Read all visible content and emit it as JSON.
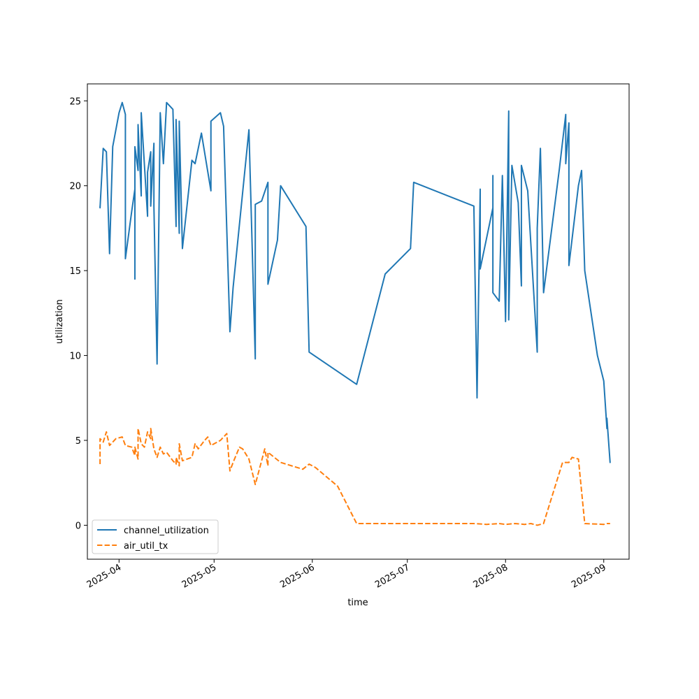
{
  "chart_data": {
    "type": "line",
    "title": "",
    "xlabel": "time",
    "ylabel": "utilization",
    "xlim": [
      "2025-03-22",
      "2025-09-09"
    ],
    "ylim": [
      -2,
      26
    ],
    "yticks": [
      0,
      5,
      10,
      15,
      20,
      25
    ],
    "xticks": [
      "2025-04-01",
      "2025-05-01",
      "2025-06-01",
      "2025-07-01",
      "2025-08-01",
      "2025-09-01"
    ],
    "xtick_labels": [
      "2025-04",
      "2025-05",
      "2025-06",
      "2025-07",
      "2025-08",
      "2025-09"
    ],
    "grid": false,
    "legend": "lower-left",
    "series": [
      {
        "name": "channel_utilization",
        "color": "#1f77b4",
        "dash": "solid",
        "points": [
          [
            "2025-03-26",
            18.8
          ],
          [
            "2025-03-26",
            18.7
          ],
          [
            "2025-03-27",
            22.2
          ],
          [
            "2025-03-28",
            22.0
          ],
          [
            "2025-03-29",
            16.0
          ],
          [
            "2025-03-30",
            22.3
          ],
          [
            "2025-04-01",
            24.3
          ],
          [
            "2025-04-02",
            24.9
          ],
          [
            "2025-04-03",
            24.2
          ],
          [
            "2025-04-03",
            15.7
          ],
          [
            "2025-04-05",
            18.5
          ],
          [
            "2025-04-06",
            19.8
          ],
          [
            "2025-04-06",
            14.5
          ],
          [
            "2025-04-06",
            22.3
          ],
          [
            "2025-04-07",
            20.9
          ],
          [
            "2025-04-07",
            23.6
          ],
          [
            "2025-04-08",
            19.4
          ],
          [
            "2025-04-08",
            24.3
          ],
          [
            "2025-04-10",
            18.2
          ],
          [
            "2025-04-10",
            20.8
          ],
          [
            "2025-04-11",
            22.0
          ],
          [
            "2025-04-11",
            18.8
          ],
          [
            "2025-04-12",
            22.5
          ],
          [
            "2025-04-12",
            18.8
          ],
          [
            "2025-04-13",
            9.5
          ],
          [
            "2025-04-14",
            24.3
          ],
          [
            "2025-04-15",
            21.3
          ],
          [
            "2025-04-16",
            24.9
          ],
          [
            "2025-04-18",
            24.5
          ],
          [
            "2025-04-19",
            17.6
          ],
          [
            "2025-04-19",
            23.9
          ],
          [
            "2025-04-20",
            17.2
          ],
          [
            "2025-04-20",
            23.8
          ],
          [
            "2025-04-21",
            16.3
          ],
          [
            "2025-04-24",
            21.5
          ],
          [
            "2025-04-25",
            21.3
          ],
          [
            "2025-04-27",
            23.1
          ],
          [
            "2025-04-30",
            19.7
          ],
          [
            "2025-04-30",
            23.8
          ],
          [
            "2025-05-03",
            24.3
          ],
          [
            "2025-05-04",
            23.5
          ],
          [
            "2025-05-06",
            11.4
          ],
          [
            "2025-05-07",
            14.0
          ],
          [
            "2025-05-12",
            23.3
          ],
          [
            "2025-05-14",
            9.8
          ],
          [
            "2025-05-14",
            18.9
          ],
          [
            "2025-05-16",
            19.1
          ],
          [
            "2025-05-18",
            20.2
          ],
          [
            "2025-05-18",
            14.2
          ],
          [
            "2025-05-21",
            16.8
          ],
          [
            "2025-05-22",
            20.0
          ],
          [
            "2025-05-30",
            17.6
          ],
          [
            "2025-05-31",
            10.2
          ],
          [
            "2025-06-15",
            8.3
          ],
          [
            "2025-06-24",
            14.8
          ],
          [
            "2025-07-02",
            16.3
          ],
          [
            "2025-07-03",
            20.2
          ],
          [
            "2025-07-22",
            18.8
          ],
          [
            "2025-07-23",
            7.5
          ],
          [
            "2025-07-24",
            19.8
          ],
          [
            "2025-07-24",
            15.1
          ],
          [
            "2025-07-28",
            18.7
          ],
          [
            "2025-07-28",
            20.6
          ],
          [
            "2025-07-28",
            13.7
          ],
          [
            "2025-07-30",
            13.2
          ],
          [
            "2025-07-31",
            20.6
          ],
          [
            "2025-08-01",
            12.0
          ],
          [
            "2025-08-02",
            24.4
          ],
          [
            "2025-08-02",
            12.1
          ],
          [
            "2025-08-03",
            21.2
          ],
          [
            "2025-08-05",
            19.0
          ],
          [
            "2025-08-06",
            14.1
          ],
          [
            "2025-08-06",
            21.2
          ],
          [
            "2025-08-08",
            19.7
          ],
          [
            "2025-08-11",
            10.2
          ],
          [
            "2025-08-11",
            17.5
          ],
          [
            "2025-08-12",
            22.2
          ],
          [
            "2025-08-13",
            13.7
          ],
          [
            "2025-08-18",
            21.0
          ],
          [
            "2025-08-20",
            24.2
          ],
          [
            "2025-08-20",
            21.3
          ],
          [
            "2025-08-21",
            23.7
          ],
          [
            "2025-08-21",
            15.3
          ],
          [
            "2025-08-24",
            20.0
          ],
          [
            "2025-08-25",
            20.9
          ],
          [
            "2025-08-26",
            15.0
          ],
          [
            "2025-08-30",
            10.0
          ],
          [
            "2025-09-01",
            8.5
          ],
          [
            "2025-09-02",
            5.7
          ],
          [
            "2025-09-02",
            6.3
          ],
          [
            "2025-09-03",
            3.7
          ]
        ]
      },
      {
        "name": "air_util_tx",
        "color": "#ff7f0e",
        "dash": "dashed",
        "points": [
          [
            "2025-03-26",
            3.6
          ],
          [
            "2025-03-26",
            5.1
          ],
          [
            "2025-03-27",
            4.9
          ],
          [
            "2025-03-28",
            5.5
          ],
          [
            "2025-03-29",
            4.7
          ],
          [
            "2025-03-31",
            5.1
          ],
          [
            "2025-04-02",
            5.2
          ],
          [
            "2025-04-03",
            4.7
          ],
          [
            "2025-04-05",
            4.6
          ],
          [
            "2025-04-06",
            4.1
          ],
          [
            "2025-04-06",
            4.6
          ],
          [
            "2025-04-07",
            3.9
          ],
          [
            "2025-04-07",
            5.7
          ],
          [
            "2025-04-08",
            4.8
          ],
          [
            "2025-04-09",
            4.6
          ],
          [
            "2025-04-10",
            5.5
          ],
          [
            "2025-04-11",
            5.1
          ],
          [
            "2025-04-11",
            5.7
          ],
          [
            "2025-04-12",
            4.5
          ],
          [
            "2025-04-13",
            4.0
          ],
          [
            "2025-04-14",
            4.6
          ],
          [
            "2025-04-15",
            4.2
          ],
          [
            "2025-04-16",
            4.3
          ],
          [
            "2025-04-18",
            3.8
          ],
          [
            "2025-04-19",
            3.6
          ],
          [
            "2025-04-19",
            4.0
          ],
          [
            "2025-04-20",
            3.5
          ],
          [
            "2025-04-20",
            4.8
          ],
          [
            "2025-04-21",
            3.8
          ],
          [
            "2025-04-24",
            4.0
          ],
          [
            "2025-04-25",
            4.8
          ],
          [
            "2025-04-26",
            4.5
          ],
          [
            "2025-04-28",
            5.0
          ],
          [
            "2025-04-29",
            5.2
          ],
          [
            "2025-04-30",
            4.7
          ],
          [
            "2025-05-03",
            5.0
          ],
          [
            "2025-05-05",
            5.4
          ],
          [
            "2025-05-06",
            3.2
          ],
          [
            "2025-05-07",
            3.7
          ],
          [
            "2025-05-09",
            4.6
          ],
          [
            "2025-05-10",
            4.5
          ],
          [
            "2025-05-12",
            3.9
          ],
          [
            "2025-05-14",
            2.4
          ],
          [
            "2025-05-16",
            3.8
          ],
          [
            "2025-05-17",
            4.5
          ],
          [
            "2025-05-18",
            3.5
          ],
          [
            "2025-05-18",
            4.3
          ],
          [
            "2025-05-20",
            4.0
          ],
          [
            "2025-05-22",
            3.7
          ],
          [
            "2025-05-29",
            3.3
          ],
          [
            "2025-05-31",
            3.6
          ],
          [
            "2025-06-02",
            3.4
          ],
          [
            "2025-06-09",
            2.3
          ],
          [
            "2025-06-15",
            0.1
          ],
          [
            "2025-07-02",
            0.1
          ],
          [
            "2025-07-22",
            0.1
          ],
          [
            "2025-07-26",
            0.05
          ],
          [
            "2025-07-30",
            0.1
          ],
          [
            "2025-08-01",
            0.05
          ],
          [
            "2025-08-04",
            0.1
          ],
          [
            "2025-08-07",
            0.05
          ],
          [
            "2025-08-09",
            0.1
          ],
          [
            "2025-08-11",
            0.0
          ],
          [
            "2025-08-13",
            0.1
          ],
          [
            "2025-08-19",
            3.7
          ],
          [
            "2025-08-21",
            3.7
          ],
          [
            "2025-08-22",
            4.0
          ],
          [
            "2025-08-24",
            3.9
          ],
          [
            "2025-08-26",
            0.1
          ],
          [
            "2025-09-01",
            0.05
          ],
          [
            "2025-09-02",
            0.1
          ],
          [
            "2025-09-03",
            0.1
          ]
        ]
      }
    ]
  }
}
